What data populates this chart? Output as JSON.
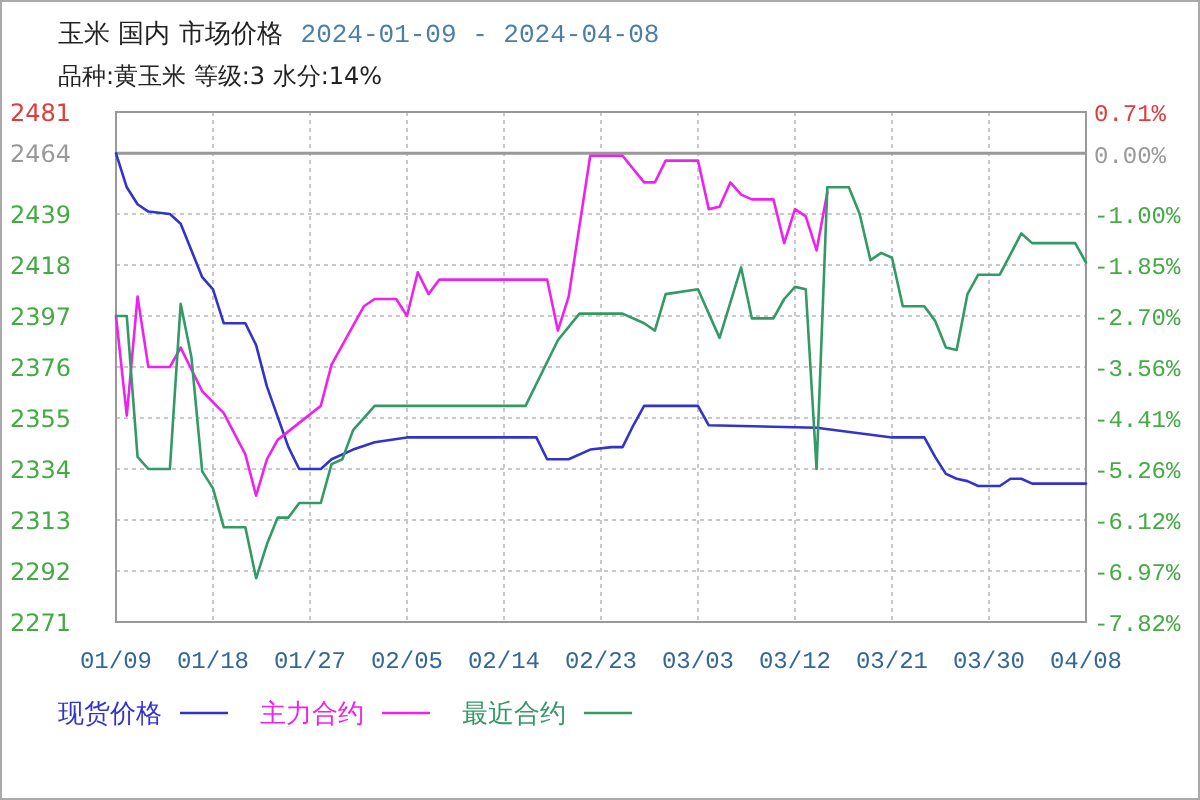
{
  "chart_data": {
    "type": "line",
    "title": "玉米 国内 市场价格",
    "subtitle": "品种:黄玉米 等级:3 水分:14%",
    "annotations": [
      "2024-01-09 - 2024-04-08"
    ],
    "xlim": [
      "2024-01-09",
      "2024-04-08"
    ],
    "xticks": [
      {
        "value": "2024-01-09",
        "label": "01/09"
      },
      {
        "value": "2024-01-18",
        "label": "01/18"
      },
      {
        "value": "2024-01-27",
        "label": "01/27"
      },
      {
        "value": "2024-02-05",
        "label": "02/05"
      },
      {
        "value": "2024-02-14",
        "label": "02/14"
      },
      {
        "value": "2024-02-23",
        "label": "02/23"
      },
      {
        "value": "2024-03-03",
        "label": "03/03"
      },
      {
        "value": "2024-03-12",
        "label": "03/12"
      },
      {
        "value": "2024-03-21",
        "label": "03/21"
      },
      {
        "value": "2024-03-30",
        "label": "03/30"
      },
      {
        "value": "2024-04-08",
        "label": "04/08"
      }
    ],
    "ylim": [
      2271,
      2481
    ],
    "yticks": [
      2271,
      2292,
      2313,
      2334,
      2355,
      2376,
      2397,
      2418,
      2439,
      2464,
      2481
    ],
    "y2lim": [
      -7.82,
      0.71
    ],
    "y2ticks": [
      {
        "value": -7.82,
        "label": "-7.82%"
      },
      {
        "value": -6.97,
        "label": "-6.97%"
      },
      {
        "value": -6.12,
        "label": "-6.12%"
      },
      {
        "value": -5.26,
        "label": "-5.26%"
      },
      {
        "value": -4.41,
        "label": "-4.41%"
      },
      {
        "value": -3.56,
        "label": "-3.56%"
      },
      {
        "value": -2.7,
        "label": "-2.70%"
      },
      {
        "value": -1.85,
        "label": "-1.85%"
      },
      {
        "value": -1.0,
        "label": "-1.00%"
      },
      {
        "value": 0,
        "label": "0.00%"
      },
      {
        "value": 0.71,
        "label": "0.71%"
      }
    ],
    "ref_lines": [
      {
        "axis": "y",
        "value": 2464,
        "color": "#999999",
        "line_style": "solid"
      }
    ],
    "grid": true,
    "legend": "bottom",
    "line_style": "solid",
    "series": [
      {
        "name": "现货价格",
        "color": "#3333cc",
        "x": [
          "2024-01-09",
          "2024-01-10",
          "2024-01-11",
          "2024-01-12",
          "2024-01-14",
          "2024-01-15",
          "2024-01-17",
          "2024-01-18",
          "2024-01-19",
          "2024-01-21",
          "2024-01-22",
          "2024-01-23",
          "2024-01-25",
          "2024-01-26",
          "2024-01-28",
          "2024-01-29",
          "2024-01-31",
          "2024-02-02",
          "2024-02-05",
          "2024-02-17",
          "2024-02-18",
          "2024-02-20",
          "2024-02-22",
          "2024-02-24",
          "2024-02-25",
          "2024-02-26",
          "2024-02-27",
          "2024-03-03",
          "2024-03-04",
          "2024-03-14",
          "2024-03-21",
          "2024-03-24",
          "2024-03-25",
          "2024-03-26",
          "2024-03-27",
          "2024-03-28",
          "2024-03-29",
          "2024-03-31",
          "2024-04-01",
          "2024-04-02",
          "2024-04-03",
          "2024-04-08"
        ],
        "values": [
          2464,
          2450,
          2443,
          2440,
          2439,
          2435,
          2413,
          2408,
          2394,
          2394,
          2385,
          2368,
          2343,
          2334,
          2334,
          2338,
          2342,
          2345,
          2347,
          2347,
          2338,
          2338,
          2342,
          2343,
          2343,
          2352,
          2360,
          2360,
          2352,
          2351,
          2347,
          2347,
          2339,
          2332,
          2330,
          2329,
          2327,
          2327,
          2330,
          2330,
          2328,
          2328
        ]
      },
      {
        "name": "主力合约",
        "color": "#ee22ee",
        "x": [
          "2024-01-09",
          "2024-01-10",
          "2024-01-11",
          "2024-01-12",
          "2024-01-14",
          "2024-01-15",
          "2024-01-17",
          "2024-01-19",
          "2024-01-21",
          "2024-01-22",
          "2024-01-23",
          "2024-01-24",
          "2024-01-28",
          "2024-01-29",
          "2024-01-31",
          "2024-02-01",
          "2024-02-02",
          "2024-02-04",
          "2024-02-05",
          "2024-02-06",
          "2024-02-07",
          "2024-02-08",
          "2024-02-18",
          "2024-02-19",
          "2024-02-20",
          "2024-02-22",
          "2024-02-25",
          "2024-02-27",
          "2024-02-28",
          "2024-02-29",
          "2024-03-03",
          "2024-03-04",
          "2024-03-05",
          "2024-03-06",
          "2024-03-07",
          "2024-03-08",
          "2024-03-10",
          "2024-03-11",
          "2024-03-12",
          "2024-03-13",
          "2024-03-14",
          "2024-03-15"
        ],
        "values": [
          2397,
          2356,
          2405,
          2376,
          2376,
          2384,
          2366,
          2357,
          2340,
          2323,
          2338,
          2346,
          2360,
          2377,
          2393,
          2401,
          2404,
          2404,
          2397,
          2415,
          2406,
          2412,
          2412,
          2391,
          2405,
          2463,
          2463,
          2452,
          2452,
          2461,
          2461,
          2441,
          2442,
          2452,
          2447,
          2445,
          2445,
          2427,
          2441,
          2438,
          2424,
          2448
        ]
      },
      {
        "name": "最近合约",
        "color": "#339966",
        "x": [
          "2024-01-09",
          "2024-01-10",
          "2024-01-11",
          "2024-01-12",
          "2024-01-14",
          "2024-01-15",
          "2024-01-16",
          "2024-01-17",
          "2024-01-18",
          "2024-01-19",
          "2024-01-21",
          "2024-01-22",
          "2024-01-23",
          "2024-01-24",
          "2024-01-25",
          "2024-01-26",
          "2024-01-28",
          "2024-01-29",
          "2024-01-30",
          "2024-01-31",
          "2024-02-02",
          "2024-02-16",
          "2024-02-19",
          "2024-02-21",
          "2024-02-25",
          "2024-02-27",
          "2024-02-28",
          "2024-02-29",
          "2024-03-03",
          "2024-03-05",
          "2024-03-07",
          "2024-03-08",
          "2024-03-10",
          "2024-03-11",
          "2024-03-12",
          "2024-03-13",
          "2024-03-14",
          "2024-03-15",
          "2024-03-17",
          "2024-03-18",
          "2024-03-19",
          "2024-03-20",
          "2024-03-21",
          "2024-03-22",
          "2024-03-24",
          "2024-03-25",
          "2024-03-26",
          "2024-03-27",
          "2024-03-28",
          "2024-03-29",
          "2024-03-31",
          "2024-04-02",
          "2024-04-03",
          "2024-04-07",
          "2024-04-08"
        ],
        "values": [
          2397,
          2397,
          2339,
          2334,
          2334,
          2402,
          2380,
          2333,
          2326,
          2310,
          2310,
          2289,
          2303,
          2314,
          2314,
          2320,
          2320,
          2336,
          2338,
          2350,
          2360,
          2360,
          2387,
          2398,
          2398,
          2394,
          2391,
          2406,
          2408,
          2388,
          2417,
          2396,
          2396,
          2404,
          2409,
          2408,
          2334,
          2450,
          2450,
          2439,
          2420,
          2423,
          2421,
          2401,
          2401,
          2395,
          2384,
          2383,
          2406,
          2414,
          2414,
          2431,
          2427,
          2427,
          2419
        ]
      }
    ]
  }
}
